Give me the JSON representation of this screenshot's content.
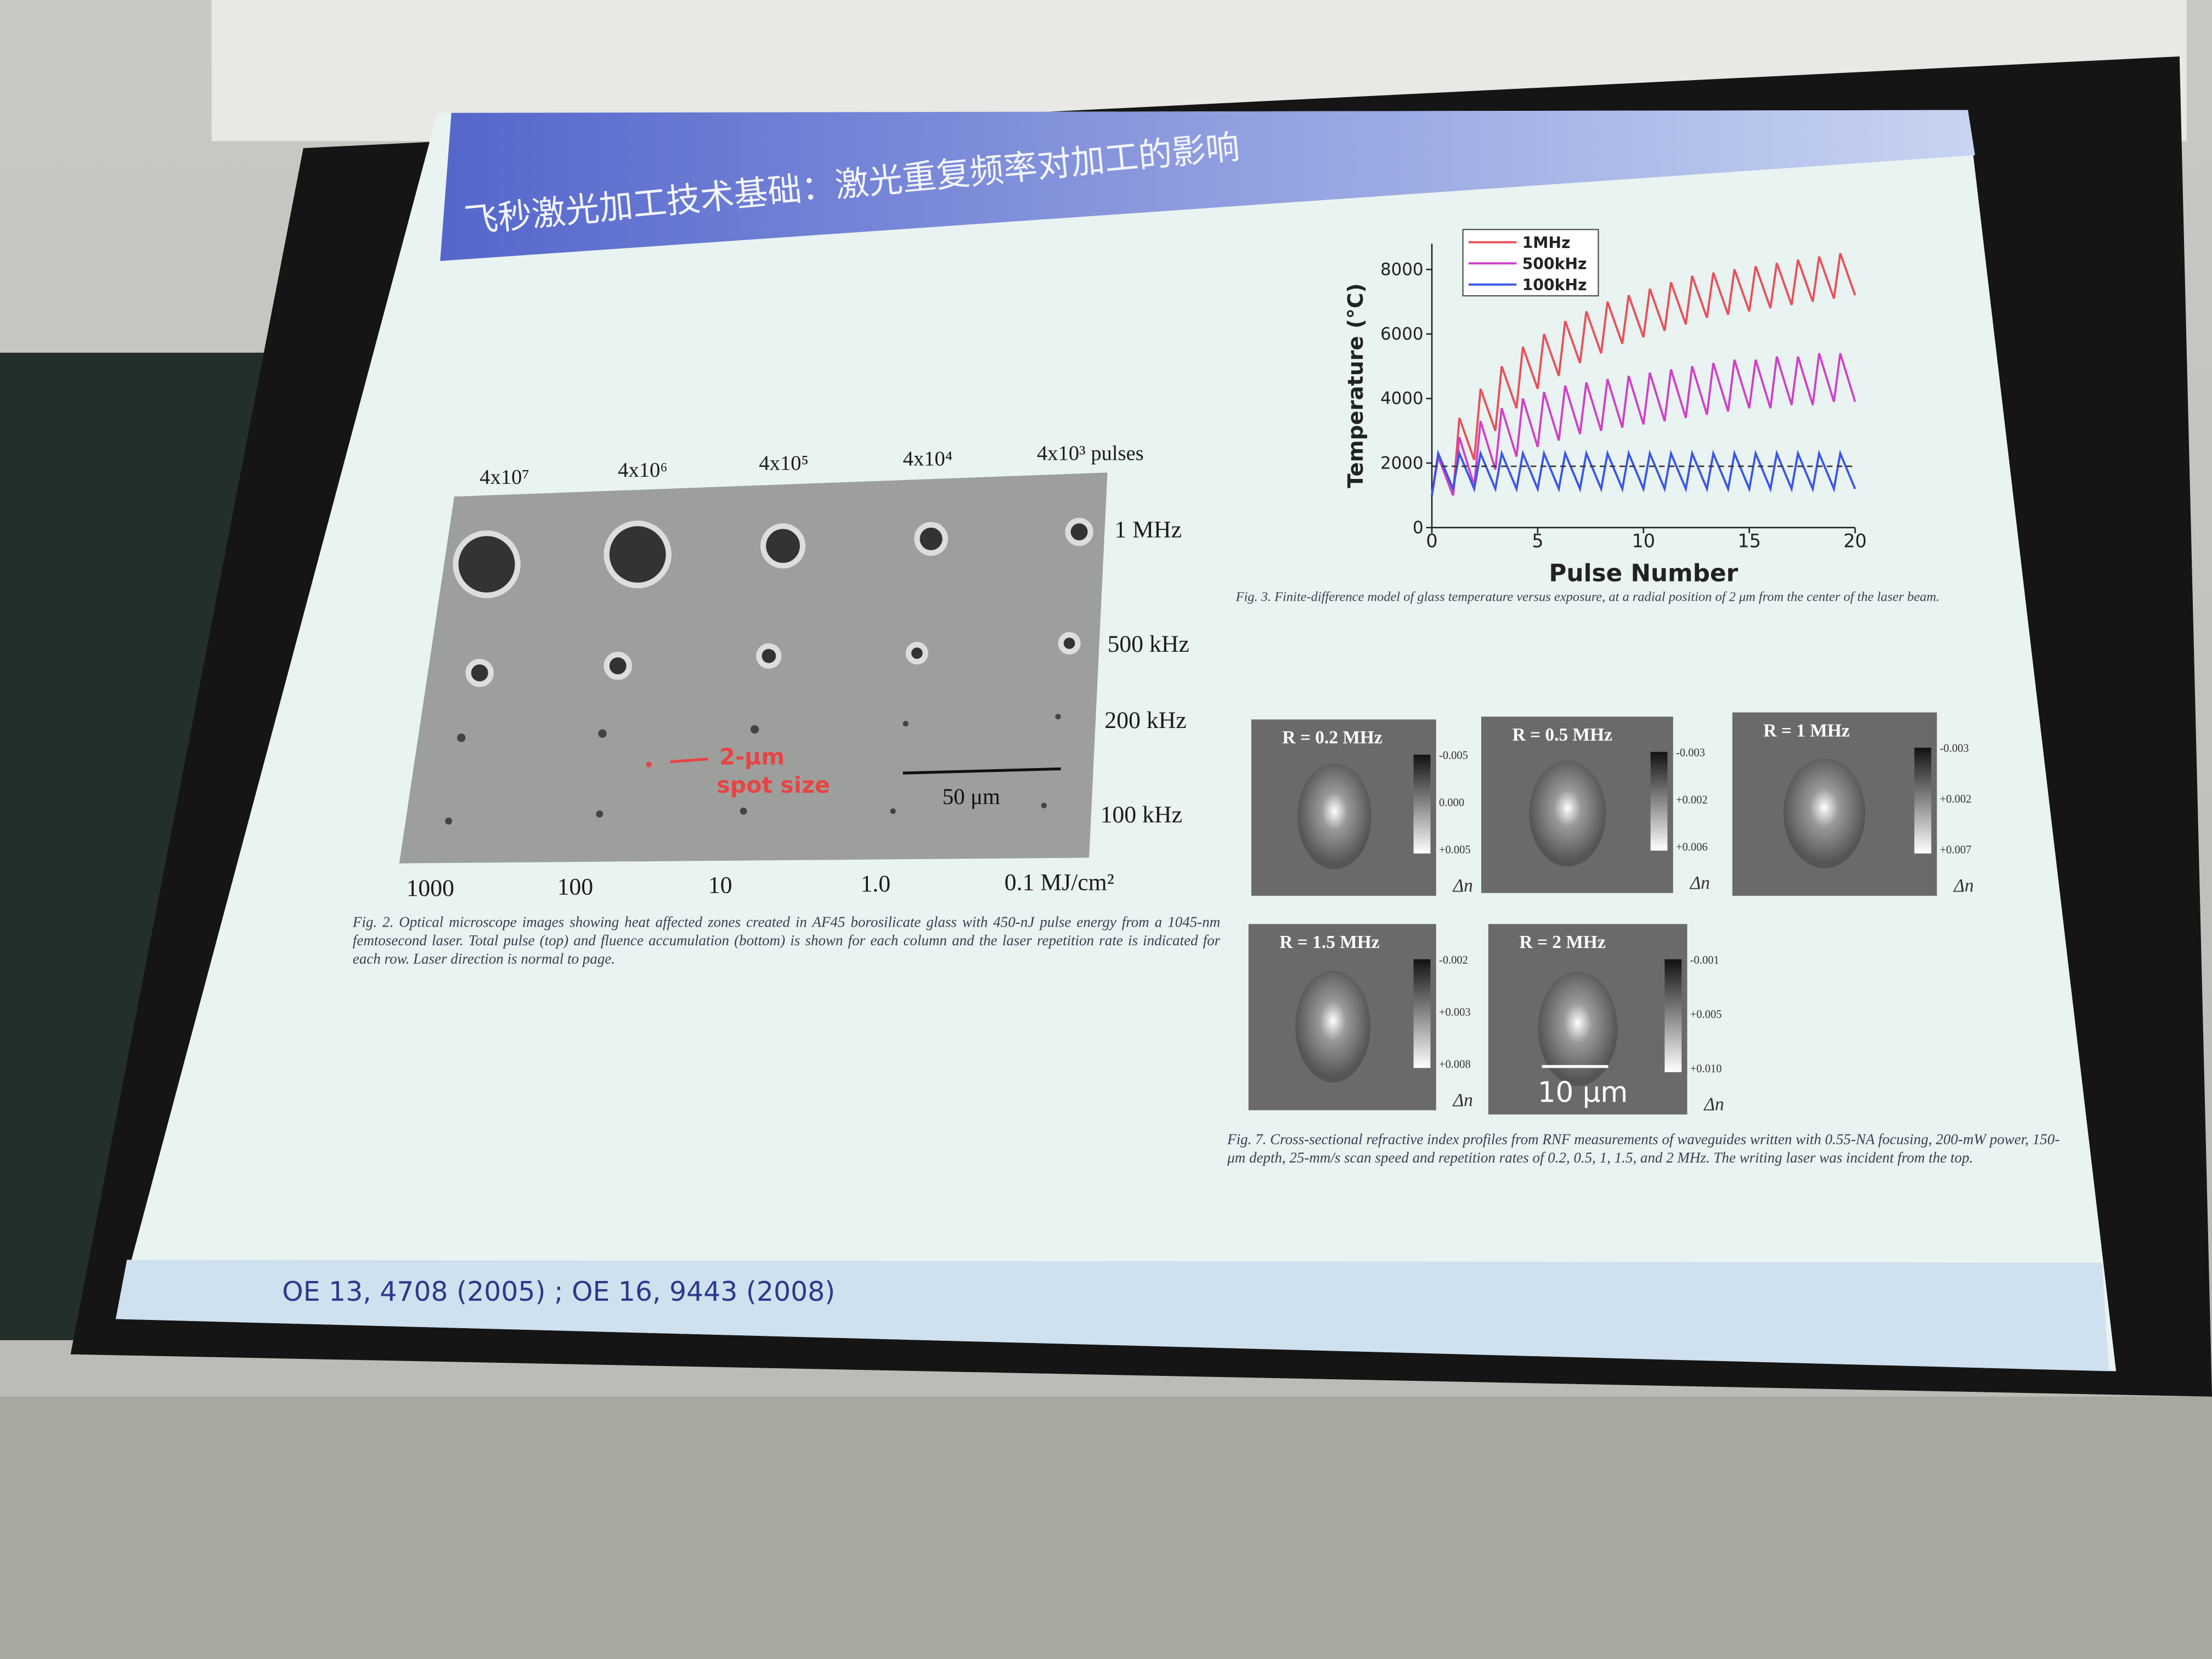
{
  "slide": {
    "title": "飞秒激光加工技术基础：激光重复频率对加工的影响",
    "footer": "OE 13, 4708 (2005) ; OE 16, 9443 (2008)"
  },
  "fig2": {
    "pulses": [
      "4x10⁷",
      "4x10⁶",
      "4x10⁵",
      "4x10⁴",
      "4x10³ pulses"
    ],
    "rates": [
      "1 MHz",
      "500 kHz",
      "200 kHz",
      "100 kHz"
    ],
    "fluence": [
      "1000",
      "100",
      "10",
      "1.0",
      "0.1 MJ/cm²"
    ],
    "spot_label": [
      "2-μm",
      "spot size"
    ],
    "scale_label": "50 μm",
    "caption": "Fig. 2.  Optical microscope images showing heat affected zones created in AF45 borosilicate glass with 450-nJ pulse energy from a 1045-nm femtosecond laser. Total pulse (top) and fluence accumulation (bottom) is shown for each column and the laser repetition rate is indicated for each row.  Laser direction is normal to page."
  },
  "fig3": {
    "caption": "Fig. 3.  Finite-difference model of glass temperature versus exposure, at a radial position of 2 μm from the center of the laser beam."
  },
  "fig7": {
    "panels": [
      {
        "label": "R = 0.2 MHz",
        "ticks": [
          "-0.005",
          "0.000",
          "+0.005"
        ],
        "unit": "Δn"
      },
      {
        "label": "R = 0.5 MHz",
        "ticks": [
          "-0.003",
          "+0.002",
          "+0.006"
        ],
        "unit": "Δn"
      },
      {
        "label": "R = 1 MHz",
        "ticks": [
          "-0.003",
          "+0.002",
          "+0.007"
        ],
        "unit": "Δn"
      },
      {
        "label": "R = 1.5 MHz",
        "ticks": [
          "-0.002",
          "+0.003",
          "+0.008"
        ],
        "unit": "Δn"
      },
      {
        "label": "R = 2 MHz",
        "ticks": [
          "-0.001",
          "+0.005",
          "+0.010"
        ],
        "unit": "Δn"
      }
    ],
    "scale_label": "10 μm",
    "caption": "Fig. 7.  Cross-sectional refractive index profiles from RNF measurements of waveguides written with 0.55-NA focusing, 200-mW power, 150-μm depth, 25-mm/s scan speed and repetition rates of 0.2, 0.5, 1, 1.5, and 2 MHz.  The writing laser was incident from the top."
  },
  "chart_data": {
    "type": "line",
    "x_label": "Pulse Number",
    "y_label": "Temperature (°C)",
    "x": [
      0,
      0.3,
      1,
      1.3,
      2,
      2.3,
      3,
      3.3,
      4,
      4.3,
      5,
      5.3,
      6,
      6.3,
      7,
      7.3,
      8,
      8.3,
      9,
      9.3,
      10,
      10.3,
      11,
      11.3,
      12,
      12.3,
      13,
      13.3,
      14,
      14.3,
      15,
      15.3,
      16,
      16.3,
      17,
      17.3,
      18,
      18.3,
      19,
      19.3,
      20
    ],
    "series": [
      {
        "name": "1MHz",
        "color": "#e8505a",
        "values": [
          1000,
          2200,
          1000,
          3400,
          2100,
          4300,
          3000,
          5000,
          3700,
          5600,
          4300,
          6000,
          4700,
          6400,
          5100,
          6700,
          5400,
          7000,
          5700,
          7200,
          5900,
          7400,
          6100,
          7600,
          6300,
          7800,
          6500,
          7900,
          6600,
          8000,
          6700,
          8100,
          6800,
          8200,
          6900,
          8300,
          7000,
          8400,
          7100,
          8500,
          7200
        ]
      },
      {
        "name": "500kHz",
        "color": "#d040c8",
        "values": [
          1000,
          2200,
          1000,
          2800,
          1300,
          3300,
          1800,
          3700,
          2200,
          4000,
          2500,
          4200,
          2700,
          4400,
          2900,
          4500,
          3000,
          4600,
          3100,
          4700,
          3200,
          4800,
          3300,
          4900,
          3400,
          5000,
          3500,
          5100,
          3600,
          5200,
          3700,
          5200,
          3700,
          5300,
          3800,
          5300,
          3800,
          5400,
          3900,
          5400,
          3900
        ]
      },
      {
        "name": "100kHz",
        "color": "#3b55e6",
        "values": [
          1000,
          2300,
          1200,
          2300,
          1200,
          2300,
          1200,
          2300,
          1200,
          2300,
          1200,
          2300,
          1200,
          2300,
          1200,
          2300,
          1200,
          2300,
          1200,
          2300,
          1200,
          2300,
          1200,
          2300,
          1200,
          2300,
          1200,
          2300,
          1200,
          2300,
          1200,
          2300,
          1200,
          2300,
          1200,
          2300,
          1200,
          2300,
          1200,
          2300,
          1200
        ]
      }
    ],
    "reference_line": 1900,
    "xlim": [
      0,
      20
    ],
    "xticks": [
      0,
      5,
      10,
      15,
      20
    ],
    "ylim": [
      0,
      8800
    ],
    "yticks": [
      0,
      2000,
      4000,
      6000,
      8000
    ],
    "legend": "top-left"
  }
}
